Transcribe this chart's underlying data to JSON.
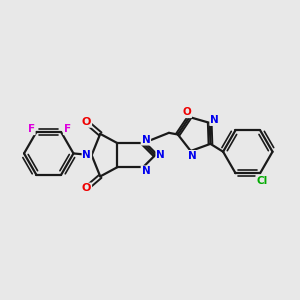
{
  "background_color": "#e8e8e8",
  "bond_color": "#1a1a1a",
  "atom_colors": {
    "N": "#0000ee",
    "O": "#ee0000",
    "F": "#dd00dd",
    "Cl": "#00aa00",
    "C": "#1a1a1a"
  },
  "bond_width": 1.6,
  "figsize": [
    3.0,
    3.0
  ],
  "dpi": 100
}
